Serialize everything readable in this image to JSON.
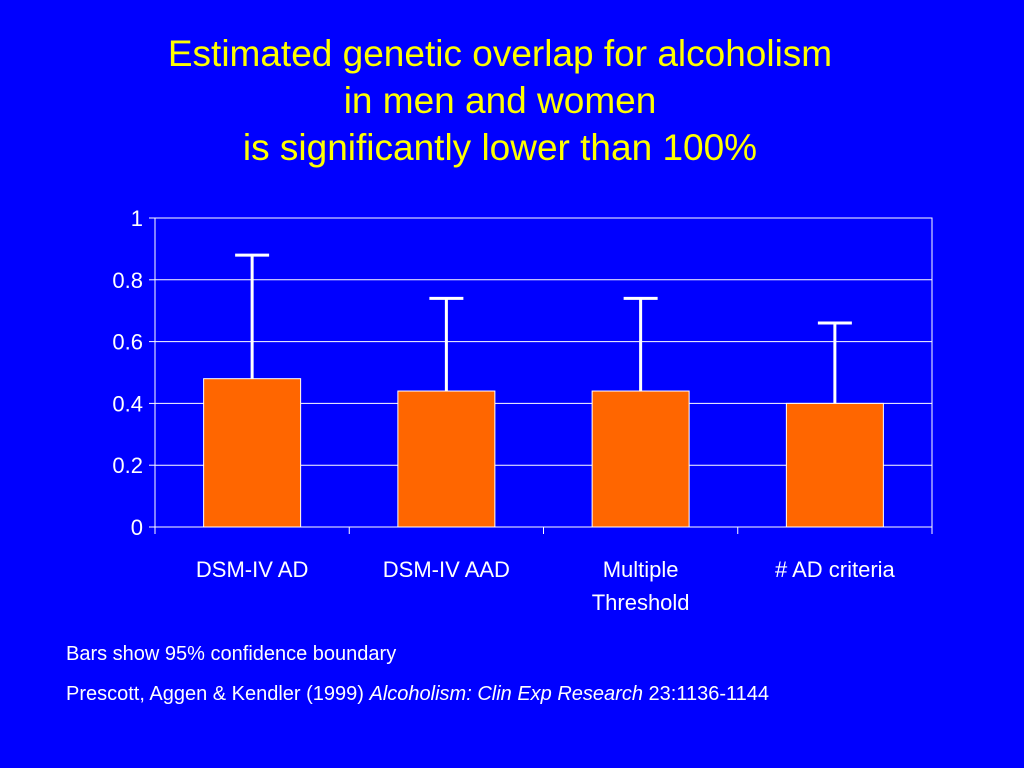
{
  "title_lines": [
    "Estimated genetic overlap for alcoholism",
    "in men and women",
    "is significantly lower than 100%"
  ],
  "chart_data": {
    "type": "bar",
    "categories": [
      "DSM-IV AD",
      "DSM-IV AAD",
      "Multiple\nThreshold",
      "# AD criteria"
    ],
    "values": [
      0.48,
      0.44,
      0.44,
      0.4
    ],
    "error_upper": [
      0.88,
      0.74,
      0.74,
      0.66
    ],
    "ylim": [
      0,
      1
    ],
    "yticks": [
      0,
      0.2,
      0.4,
      0.6,
      0.8,
      1
    ],
    "ytick_labels": [
      "0",
      "0.2",
      "0.4",
      "0.6",
      "0.8",
      "1"
    ],
    "grid": true,
    "xlabel": "",
    "ylabel": ""
  },
  "colors": {
    "background": "#0000ff",
    "title": "#ffff00",
    "bar_fill": "#ff6600",
    "bar_stroke": "#ffffff",
    "axis": "#ffffff",
    "text": "#ffffff"
  },
  "footnotes": {
    "line1": "Bars show 95% confidence boundary",
    "line2_pre": "Prescott, Aggen & Kendler (1999) ",
    "line2_journal": "Alcoholism: Clin Exp Research",
    "line2_post": " 23:1136-1144"
  }
}
